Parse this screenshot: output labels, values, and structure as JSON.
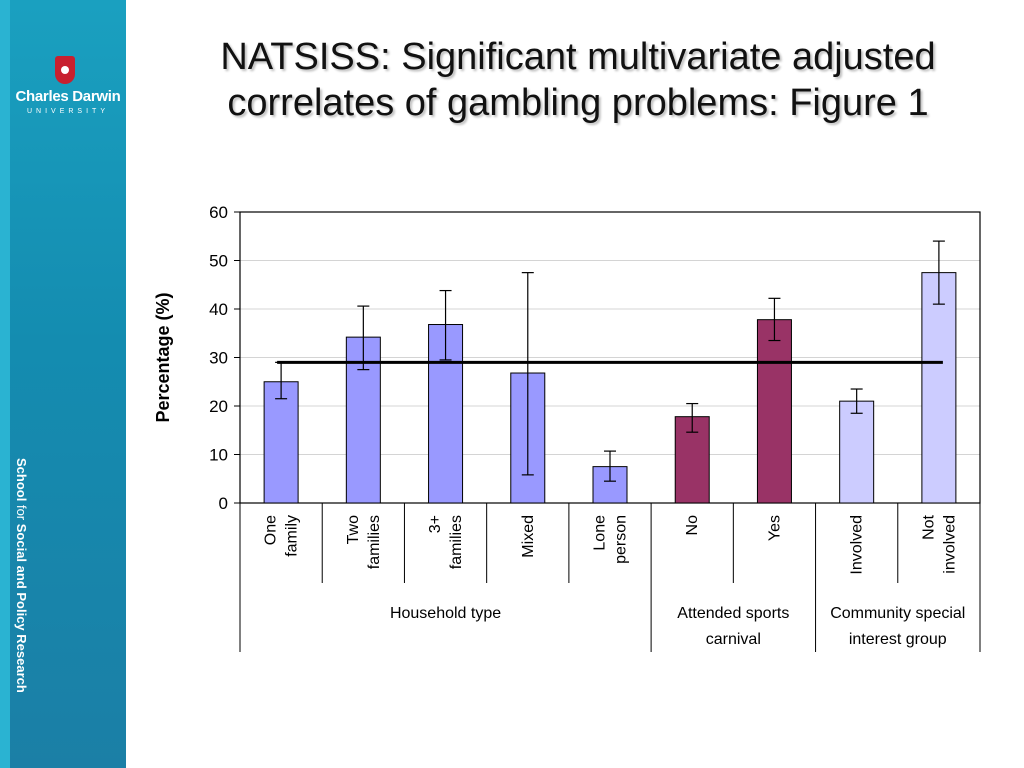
{
  "title_lines": [
    "NATSISS: Significant multivariate adjusted",
    "correlates of gambling problems: Figure 1"
  ],
  "logo": {
    "name": "Charles Darwin",
    "sub": "UNIVERSITY"
  },
  "school": {
    "part1": "School ",
    "part2": "for",
    "part3": " Social and Policy Research"
  },
  "colors": {
    "household": "#9999ff",
    "sports": "#993366",
    "community": "#ccccff",
    "sidebar": "#148cb0"
  },
  "chart_data": {
    "type": "bar",
    "ylabel": "Percentage (%)",
    "xlabel": "",
    "ylim": [
      0,
      60
    ],
    "yticks": [
      0,
      10,
      20,
      30,
      40,
      50,
      60
    ],
    "reference_line": 29,
    "grid": true,
    "categories": [
      [
        "One",
        "family"
      ],
      [
        "Two",
        "families"
      ],
      [
        "3+",
        "families"
      ],
      [
        "Mixed"
      ],
      [
        "Lone",
        "person"
      ],
      [
        "No"
      ],
      [
        "Yes"
      ],
      [
        "Involved"
      ],
      [
        "Not",
        "involved"
      ]
    ],
    "values": [
      25,
      34.2,
      36.8,
      26.8,
      7.5,
      17.8,
      37.8,
      21,
      47.5
    ],
    "error_low": [
      21.5,
      27.5,
      29.5,
      5.8,
      4.5,
      14.6,
      33.5,
      18.5,
      41
    ],
    "error_high": [
      29,
      40.6,
      43.8,
      47.5,
      10.7,
      20.5,
      42.2,
      23.5,
      54
    ],
    "groups": [
      {
        "label_lines": [
          "Household type"
        ],
        "start": 0,
        "end": 5,
        "color": "#9999ff"
      },
      {
        "label_lines": [
          "Attended sports",
          "carnival"
        ],
        "start": 5,
        "end": 7,
        "color": "#993366"
      },
      {
        "label_lines": [
          "Community special",
          "interest group"
        ],
        "start": 7,
        "end": 9,
        "color": "#ccccff"
      }
    ]
  }
}
